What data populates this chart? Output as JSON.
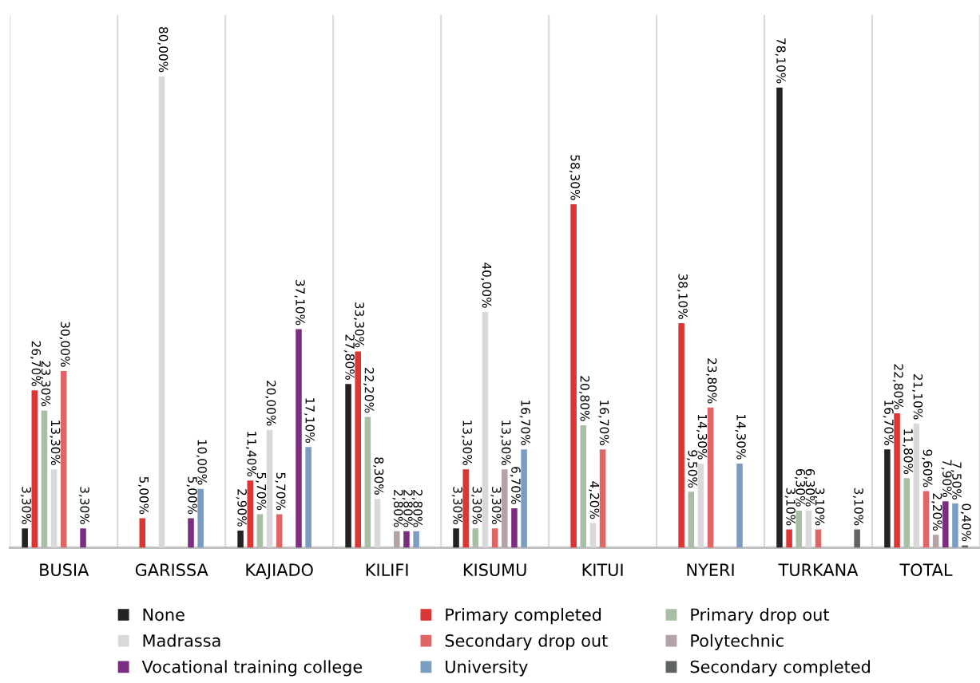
{
  "chart_data": {
    "type": "bar",
    "categories": [
      "BUSIA",
      "GARISSA",
      "KAJIADO",
      "KILIFI",
      "KISUMU",
      "KITUI",
      "NYERI",
      "TURKANA",
      "TOTAL"
    ],
    "series": [
      {
        "name": "None",
        "color": "#222222",
        "values": [
          3.3,
          null,
          2.9,
          27.8,
          3.3,
          null,
          null,
          78.1,
          16.7
        ],
        "value_labels": [
          "3,30%",
          null,
          "2,90%",
          "27,80%",
          "3,30%",
          null,
          null,
          "78,10%",
          "16,70%"
        ]
      },
      {
        "name": "Primary completed",
        "color": "#dc3535",
        "values": [
          26.7,
          5.0,
          11.4,
          33.3,
          13.3,
          58.3,
          38.1,
          3.1,
          22.8
        ],
        "value_labels": [
          "26,70%",
          "5,00%",
          "11,40%",
          "33,30%",
          "13,30%",
          "58,30%",
          "38,10%",
          "3,10%",
          "22,80%"
        ]
      },
      {
        "name": "Primary drop out",
        "color": "#a9bfa5",
        "values": [
          23.3,
          null,
          5.7,
          22.2,
          3.3,
          20.8,
          9.5,
          6.3,
          11.8
        ],
        "value_labels": [
          "23,30%",
          null,
          "5,70%",
          "22,20%",
          "3,30%",
          "20,80%",
          "9,50%",
          "6,30%",
          "11,80%"
        ]
      },
      {
        "name": "Madrassa",
        "color": "#d9d9d9",
        "values": [
          13.3,
          80.0,
          20.0,
          8.3,
          40.0,
          4.2,
          14.3,
          6.3,
          21.1
        ],
        "value_labels": [
          "13,30%",
          "80,00%",
          "20,00%",
          "8,30%",
          "40,00%",
          "4,20%",
          "14,30%",
          "6,30%",
          "21,10%"
        ]
      },
      {
        "name": "Secondary drop out",
        "color": "#e06666",
        "values": [
          30.0,
          null,
          5.7,
          null,
          3.3,
          16.7,
          23.8,
          3.1,
          9.6
        ],
        "value_labels": [
          "30,00%",
          null,
          "5,70%",
          null,
          "3,30%",
          "16,70%",
          "23,80%",
          "3,10%",
          "9,60%"
        ]
      },
      {
        "name": "Polytechnic",
        "color": "#b3a3a6",
        "values": [
          null,
          null,
          null,
          2.8,
          13.3,
          null,
          null,
          null,
          2.2
        ],
        "value_labels": [
          null,
          null,
          null,
          "2,80%",
          "13,30%",
          null,
          null,
          null,
          "2,20%"
        ]
      },
      {
        "name": "Vocational training college",
        "color": "#7b2d80",
        "values": [
          3.3,
          5.0,
          37.1,
          2.8,
          6.7,
          null,
          null,
          null,
          7.9
        ],
        "value_labels": [
          "3,30%",
          "5,00%",
          "37,10%",
          "2,80%",
          "6,70%",
          null,
          null,
          null,
          "7,90%"
        ]
      },
      {
        "name": "University",
        "color": "#7b9dc1",
        "values": [
          null,
          10.0,
          17.1,
          2.8,
          16.7,
          null,
          14.3,
          null,
          7.5
        ],
        "value_labels": [
          null,
          "10,00%",
          "17,10%",
          "2,80%",
          "16,70%",
          null,
          "14,30%",
          null,
          "7,50%"
        ]
      },
      {
        "name": "Secondary completed",
        "color": "#5f6361",
        "values": [
          null,
          null,
          null,
          null,
          null,
          null,
          null,
          3.1,
          0.4
        ],
        "value_labels": [
          null,
          null,
          null,
          null,
          null,
          null,
          null,
          "3,10%",
          "0,40%"
        ]
      }
    ],
    "grid": "x",
    "legend": "bottom"
  }
}
